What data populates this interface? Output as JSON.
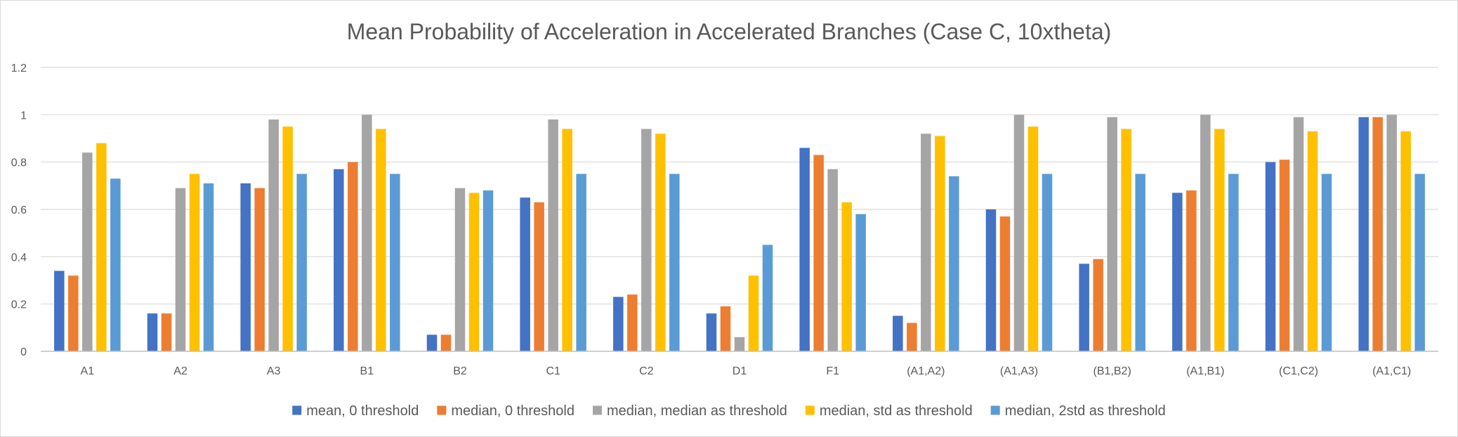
{
  "chart_data": {
    "type": "bar",
    "title": "Mean Probability of Acceleration in Accelerated Branches (Case C, 10xtheta)",
    "xlabel": "",
    "ylabel": "",
    "ylim": [
      0,
      1.2
    ],
    "yticks": [
      "0",
      "0.2",
      "0.4",
      "0.6",
      "0.8",
      "1",
      "1.2"
    ],
    "grid": true,
    "legend_position": "bottom",
    "categories": [
      "A1",
      "A2",
      "A3",
      "B1",
      "B2",
      "C1",
      "C2",
      "D1",
      "F1",
      "(A1,A2)",
      "(A1,A3)",
      "(B1,B2)",
      "(A1,B1)",
      "(C1,C2)",
      "(A1,C1)"
    ],
    "series": [
      {
        "name": "mean, 0 threshold",
        "color": "#4472c4",
        "values": [
          0.34,
          0.16,
          0.71,
          0.77,
          0.07,
          0.65,
          0.23,
          0.16,
          0.86,
          0.15,
          0.6,
          0.37,
          0.67,
          0.8,
          0.99
        ]
      },
      {
        "name": "median, 0 threshold",
        "color": "#ed7d31",
        "values": [
          0.32,
          0.16,
          0.69,
          0.8,
          0.07,
          0.63,
          0.24,
          0.19,
          0.83,
          0.12,
          0.57,
          0.39,
          0.68,
          0.81,
          0.99
        ]
      },
      {
        "name": "median, median as threshold",
        "color": "#a5a5a5",
        "values": [
          0.84,
          0.69,
          0.98,
          1.0,
          0.69,
          0.98,
          0.94,
          0.06,
          0.77,
          0.92,
          1.0,
          0.99,
          1.0,
          0.99,
          1.0
        ]
      },
      {
        "name": "median, std as threshold",
        "color": "#ffc000",
        "values": [
          0.88,
          0.75,
          0.95,
          0.94,
          0.67,
          0.94,
          0.92,
          0.32,
          0.63,
          0.91,
          0.95,
          0.94,
          0.94,
          0.93,
          0.93
        ]
      },
      {
        "name": "median, 2std as threshold",
        "color": "#5b9bd5",
        "values": [
          0.73,
          0.71,
          0.75,
          0.75,
          0.68,
          0.75,
          0.75,
          0.45,
          0.58,
          0.74,
          0.75,
          0.75,
          0.75,
          0.75,
          0.75
        ]
      }
    ]
  }
}
